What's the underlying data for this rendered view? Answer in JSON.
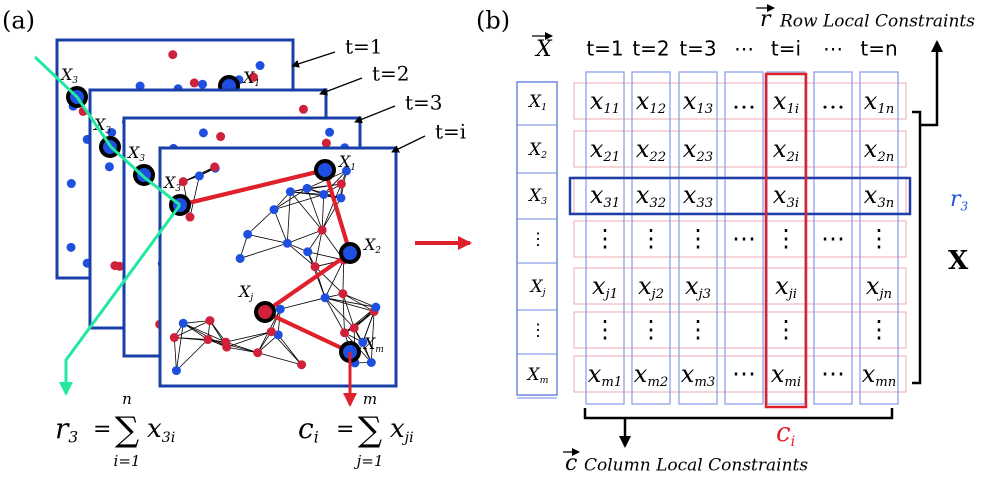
{
  "panel_a": {
    "label": "(a)",
    "frames": [
      {
        "time": "t=1",
        "labels": [
          {
            "base": "X",
            "sub": "3"
          },
          {
            "base": "X",
            "sub": "1"
          }
        ]
      },
      {
        "time": "t=2",
        "labels": [
          {
            "base": "X",
            "sub": "3"
          },
          {
            "base": "X",
            "sub": "1"
          }
        ]
      },
      {
        "time": "t=3",
        "labels": [
          {
            "base": "X",
            "sub": "3"
          },
          {
            "base": "X",
            "sub": "1"
          }
        ]
      },
      {
        "time": "t=i",
        "labels": [
          {
            "base": "X",
            "sub": "3"
          },
          {
            "base": "X",
            "sub": "1"
          },
          {
            "base": "X",
            "sub": "2"
          },
          {
            "base": "X",
            "sub": "j"
          },
          {
            "base": "X",
            "sub": "m"
          }
        ]
      }
    ],
    "formulas": [
      {
        "lhs": {
          "base": "r",
          "sub": "3"
        },
        "eq": "=",
        "sum": "∑",
        "upper": "n",
        "lower": "i=1",
        "term": {
          "base": "x",
          "sub": "3i"
        }
      },
      {
        "lhs": {
          "base": "c",
          "sub": "i"
        },
        "eq": "=",
        "sum": "∑",
        "upper": "m",
        "lower": "j=1",
        "term": {
          "base": "x",
          "sub": "ji"
        }
      }
    ]
  },
  "panel_b": {
    "label": "(b)",
    "vector_x": "X",
    "headers": [
      "t=1",
      "t=2",
      "t=3",
      "⋯",
      "t=i",
      "⋯",
      "t=n"
    ],
    "rows": [
      {
        "base": "X",
        "sub": "1"
      },
      {
        "base": "X",
        "sub": "2"
      },
      {
        "base": "X",
        "sub": "3"
      },
      "⋮",
      {
        "base": "X",
        "sub": "j"
      },
      "⋮",
      {
        "base": "X",
        "sub": "m"
      }
    ],
    "cells": [
      [
        {
          "base": "x",
          "sub": "11"
        },
        {
          "base": "x",
          "sub": "12"
        },
        {
          "base": "x",
          "sub": "13"
        },
        "…",
        {
          "base": "x",
          "sub": "1i"
        },
        "…",
        {
          "base": "x",
          "sub": "1n"
        }
      ],
      [
        {
          "base": "x",
          "sub": "21"
        },
        {
          "base": "x",
          "sub": "22"
        },
        {
          "base": "x",
          "sub": "23"
        },
        null,
        {
          "base": "x",
          "sub": "2i"
        },
        null,
        {
          "base": "x",
          "sub": "2n"
        }
      ],
      [
        {
          "base": "x",
          "sub": "31"
        },
        {
          "base": "x",
          "sub": "32"
        },
        {
          "base": "x",
          "sub": "33"
        },
        null,
        {
          "base": "x",
          "sub": "3i"
        },
        null,
        {
          "base": "x",
          "sub": "3n"
        }
      ],
      [
        "⋮",
        "⋮",
        "⋮",
        "⋯",
        "⋮",
        "⋯",
        "⋮"
      ],
      [
        {
          "base": "x",
          "sub": "j1"
        },
        {
          "base": "x",
          "sub": "j2"
        },
        {
          "base": "x",
          "sub": "j3"
        },
        null,
        {
          "base": "x",
          "sub": "ji"
        },
        null,
        {
          "base": "x",
          "sub": "jn"
        }
      ],
      [
        "⋮",
        "⋮",
        "⋮",
        null,
        "⋮",
        null,
        "⋮"
      ],
      [
        {
          "base": "x",
          "sub": "m1"
        },
        {
          "base": "x",
          "sub": "m2"
        },
        {
          "base": "x",
          "sub": "m3"
        },
        "⋯",
        {
          "base": "x",
          "sub": "mi"
        },
        "⋯",
        {
          "base": "x",
          "sub": "mn"
        }
      ]
    ],
    "row_constraint": {
      "symbol": "r",
      "text": "Row Local Constraints"
    },
    "column_constraint": {
      "symbol": "c",
      "text": "Column Local Constraints"
    },
    "r_label": {
      "base": "r",
      "sub": "3"
    },
    "c_label": {
      "base": "c",
      "sub": "i"
    },
    "matrix_label": "X"
  }
}
